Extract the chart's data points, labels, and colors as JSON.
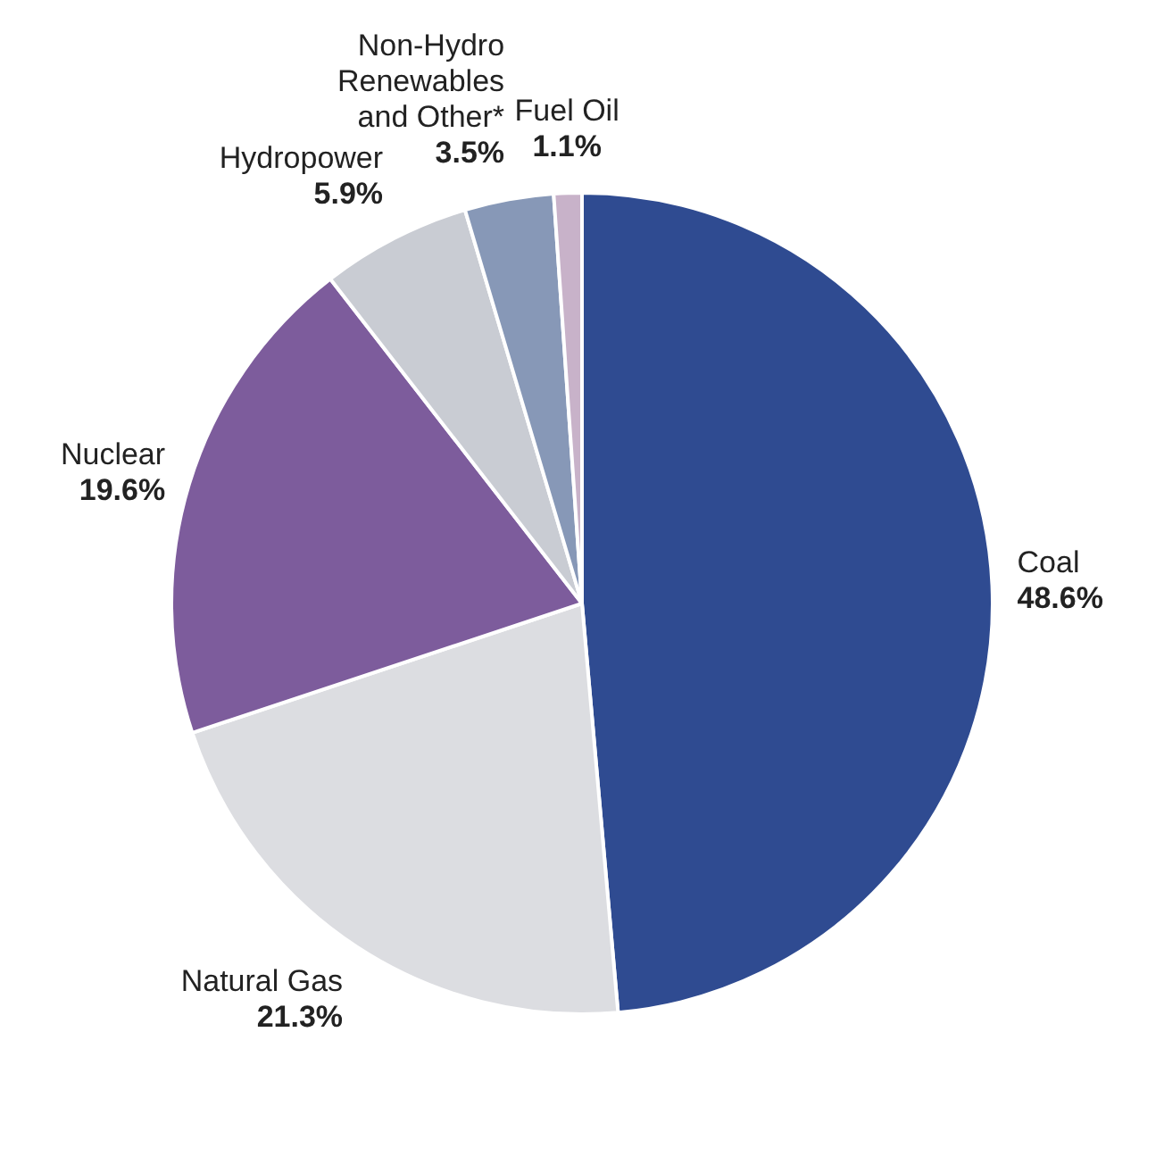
{
  "chart_data": {
    "type": "pie",
    "categories": [
      "Coal",
      "Natural Gas",
      "Nuclear",
      "Hydropower",
      "Non-Hydro Renewables and Other*",
      "Fuel Oil"
    ],
    "values": [
      48.6,
      21.3,
      19.6,
      5.9,
      3.5,
      1.1
    ],
    "value_labels": [
      "48.6%",
      "21.3%",
      "19.6%",
      "5.9%",
      "3.5%",
      "1.1%"
    ],
    "colors": [
      "#2f4b91",
      "#dcdde1",
      "#7d5c9c",
      "#c9ccd3",
      "#8798b7",
      "#c8b2c9"
    ],
    "legend": false
  }
}
